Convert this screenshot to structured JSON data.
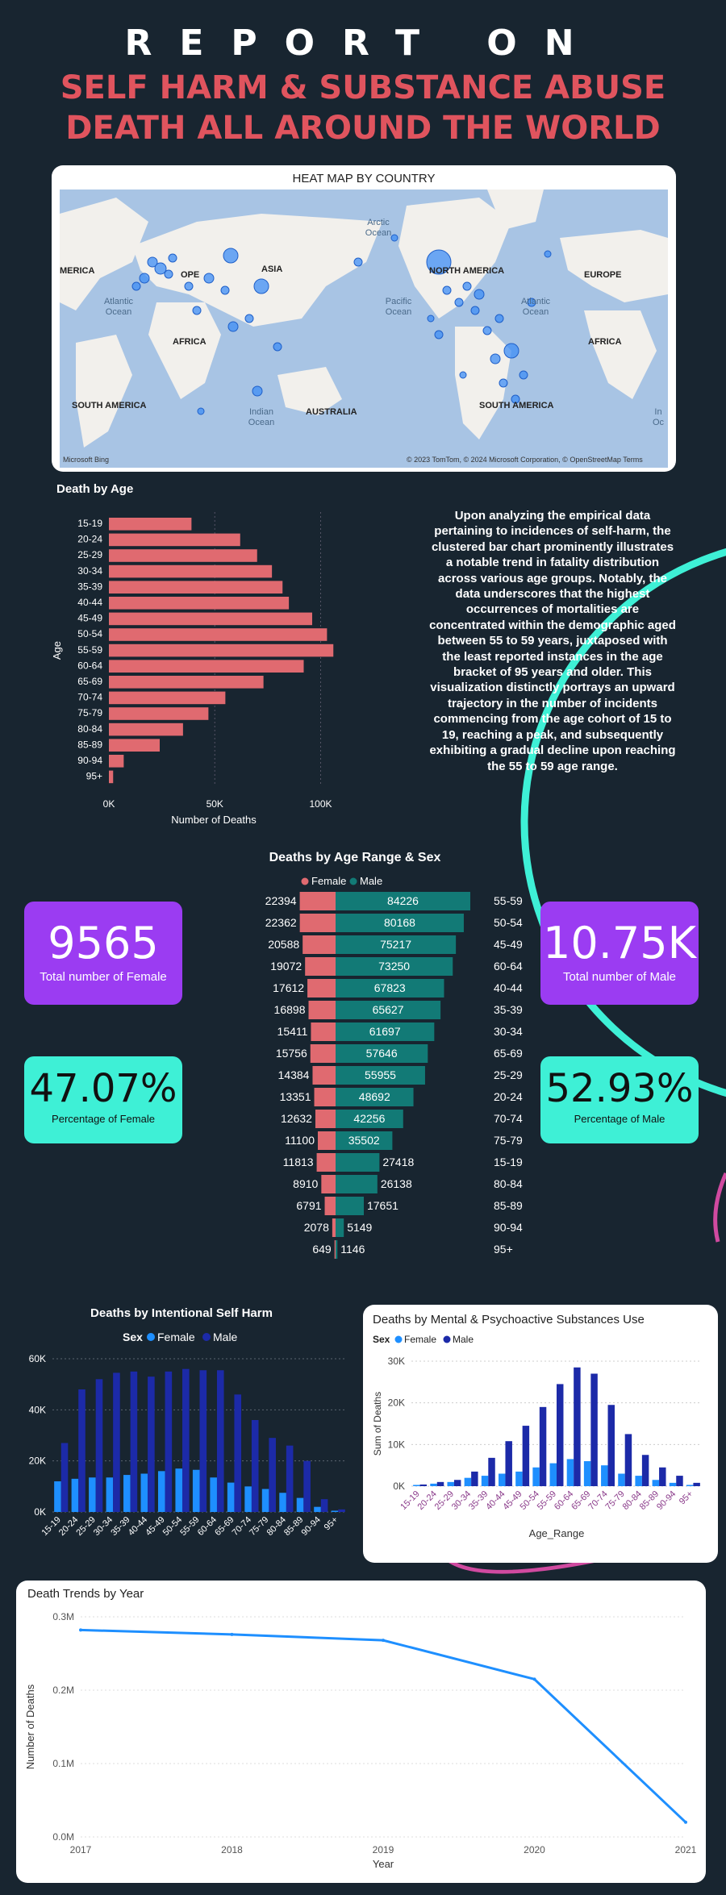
{
  "title_line1": "REPORT ON",
  "title_line2": "SELF HARM & SUBSTANCE ABUSE DEATH ALL AROUND THE WORLD",
  "map": {
    "title": "HEAT MAP BY COUNTRY",
    "labels": {
      "america_left": "MERICA",
      "ope": "OPE",
      "asia": "ASIA",
      "north_america": "NORTH AMERICA",
      "europe": "EUROPE",
      "africa_left": "AFRICA",
      "africa_right": "AFRICA",
      "south_america_left": "SOUTH AMERICA",
      "south_america_right": "SOUTH AMERICA",
      "australia": "AUSTRALIA",
      "arctic": "Arctic Ocean",
      "atlantic_left": "Atlantic Ocean",
      "atlantic_right": "Atlantic Ocean",
      "pacific": "Pacific Ocean",
      "indian": "Indian Ocean",
      "indian_right": "In Oc"
    },
    "logo": "Microsoft Bing",
    "credits": "© 2023 TomTom, © 2024 Microsoft Corporation, © OpenStreetMap Terms"
  },
  "age_chart": {
    "title": "Death by Age",
    "ylabel": "Age",
    "xlabel": "Number of Deaths",
    "categories": [
      "15-19",
      "20-24",
      "25-29",
      "30-34",
      "35-39",
      "40-44",
      "45-49",
      "50-54",
      "55-59",
      "60-64",
      "65-69",
      "70-74",
      "75-79",
      "80-84",
      "85-89",
      "90-94",
      "95+"
    ],
    "values": [
      39000,
      62000,
      70000,
      77000,
      82000,
      85000,
      96000,
      103000,
      106000,
      92000,
      73000,
      55000,
      47000,
      35000,
      24000,
      7000,
      2000
    ],
    "ticks": [
      "0K",
      "50K",
      "100K"
    ],
    "tick_values": [
      0,
      50000,
      100000
    ],
    "xlim": [
      0,
      120000
    ],
    "color": "#e06a70"
  },
  "paragraph": "Upon analyzing the empirical data pertaining to incidences of self-harm, the clustered bar chart prominently illustrates a notable trend in fatality distribution across various age groups. Notably, the data underscores that the highest occurrences of mortalities are concentrated within the demographic aged between 55 to 59 years, juxtaposed with the least reported instances in the age bracket of 95 years and older. This visualization distinctly portrays an upward trajectory in the number of incidents commencing from the age cohort of 15 to 19, reaching a peak, and subsequently exhibiting a gradual decline upon reaching the 55 to 59 age range.",
  "kpis": {
    "female_total": {
      "value": "9565",
      "label": "Total number of Female"
    },
    "male_total": {
      "value": "10.75K",
      "label": "Total number of Male"
    },
    "female_pct": {
      "value": "47.07%",
      "label": "Percentage of Female"
    },
    "male_pct": {
      "value": "52.93%",
      "label": "Percentage of Male"
    }
  },
  "colors": {
    "female_pink": "#e06a70",
    "male_teal": "#127a76",
    "self_harm_female": "#1e8fff",
    "self_harm_male": "#1c2aa8",
    "line": "#1e8fff",
    "kpi_purple": "#9b3cf2",
    "kpi_cyan": "#3ef0d6"
  },
  "chart_data": [
    {
      "type": "bar",
      "title": "Death by Age",
      "ylabel": "Age",
      "xlabel": "Number of Deaths",
      "categories": [
        "15-19",
        "20-24",
        "25-29",
        "30-34",
        "35-39",
        "40-44",
        "45-49",
        "50-54",
        "55-59",
        "60-64",
        "65-69",
        "70-74",
        "75-79",
        "80-84",
        "85-89",
        "90-94",
        "95+"
      ],
      "values": [
        39000,
        62000,
        70000,
        77000,
        82000,
        85000,
        96000,
        103000,
        106000,
        92000,
        73000,
        55000,
        47000,
        35000,
        24000,
        7000,
        2000
      ]
    },
    {
      "type": "bar",
      "title": "Deaths by Age Range & Sex",
      "legend": [
        "Female",
        "Male"
      ],
      "categories": [
        "55-59",
        "50-54",
        "45-49",
        "60-64",
        "40-44",
        "35-39",
        "30-34",
        "65-69",
        "25-29",
        "20-24",
        "70-74",
        "75-79",
        "15-19",
        "80-84",
        "85-89",
        "90-94",
        "95+"
      ],
      "series": [
        {
          "name": "Female",
          "values": [
            22394,
            22362,
            20588,
            19072,
            17612,
            16898,
            15411,
            15756,
            14384,
            13351,
            12632,
            11100,
            11813,
            8910,
            6791,
            2078,
            649
          ]
        },
        {
          "name": "Male",
          "values": [
            84226,
            80168,
            75217,
            73250,
            67823,
            65627,
            61697,
            57646,
            55955,
            48692,
            42256,
            35502,
            27418,
            26138,
            17651,
            5149,
            1146
          ]
        }
      ]
    },
    {
      "type": "bar",
      "title": "Deaths by Intentional Self Harm",
      "legend_title": "Sex",
      "categories": [
        "15-19",
        "20-24",
        "25-29",
        "30-34",
        "35-39",
        "40-44",
        "45-49",
        "50-54",
        "55-59",
        "60-64",
        "65-69",
        "70-74",
        "75-79",
        "80-84",
        "85-89",
        "90-94",
        "95+"
      ],
      "series": [
        {
          "name": "Female",
          "values": [
            12000,
            13000,
            13500,
            13500,
            14500,
            15000,
            16000,
            17000,
            16500,
            13500,
            11500,
            10000,
            9000,
            7500,
            5500,
            2000,
            500
          ]
        },
        {
          "name": "Male",
          "values": [
            27000,
            48000,
            52000,
            54500,
            55000,
            53000,
            55000,
            56000,
            55500,
            55500,
            46000,
            36000,
            29000,
            26000,
            20000,
            5000,
            1000
          ]
        }
      ],
      "ticks": [
        "0K",
        "20K",
        "40K",
        "60K"
      ],
      "ylim": [
        0,
        60000
      ]
    },
    {
      "type": "bar",
      "title": "Deaths by Mental & Psychoactive Substances Use",
      "legend_title": "Sex",
      "xlabel": "Age_Range",
      "ylabel": "Sum of Deaths",
      "categories": [
        "15-19",
        "20-24",
        "25-29",
        "30-34",
        "35-39",
        "40-44",
        "45-49",
        "50-54",
        "55-59",
        "60-64",
        "65-69",
        "70-74",
        "75-79",
        "80-84",
        "85-89",
        "90-94",
        "95+"
      ],
      "series": [
        {
          "name": "Female",
          "values": [
            300,
            600,
            1000,
            2000,
            2500,
            3000,
            3500,
            4500,
            5500,
            6500,
            6000,
            5000,
            3000,
            2500,
            1500,
            800,
            300
          ]
        },
        {
          "name": "Male",
          "values": [
            400,
            1000,
            1500,
            3500,
            6800,
            10800,
            14500,
            19000,
            24500,
            28500,
            27000,
            19500,
            12500,
            7500,
            4500,
            2500,
            800
          ]
        }
      ],
      "ticks": [
        "0K",
        "10K",
        "20K",
        "30K"
      ],
      "ylim": [
        0,
        30000
      ]
    },
    {
      "type": "line",
      "title": "Death Trends by Year",
      "xlabel": "Year",
      "ylabel": "Number of Deaths",
      "x": [
        "2017",
        "2018",
        "2019",
        "2020",
        "2021"
      ],
      "values": [
        282000,
        276000,
        268000,
        215000,
        20000
      ],
      "ticks": [
        "0.0M",
        "0.1M",
        "0.2M",
        "0.3M"
      ],
      "ylim": [
        0,
        300000
      ]
    }
  ],
  "sexage": {
    "title": "Deaths by Age Range & Sex",
    "legend_female": "Female",
    "legend_male": "Male"
  },
  "selfharm": {
    "title": "Deaths by Intentional Self Harm",
    "legend_title": "Sex",
    "legend_female": "Female",
    "legend_male": "Male"
  },
  "substances": {
    "title": "Deaths by Mental & Psychoactive Substances Use",
    "legend_title": "Sex",
    "legend_female": "Female",
    "legend_male": "Male",
    "xlabel": "Age_Range",
    "ylabel": "Sum of Deaths"
  },
  "trend": {
    "title": "Death Trends by Year",
    "xlabel": "Year",
    "ylabel": "Number of Deaths"
  }
}
